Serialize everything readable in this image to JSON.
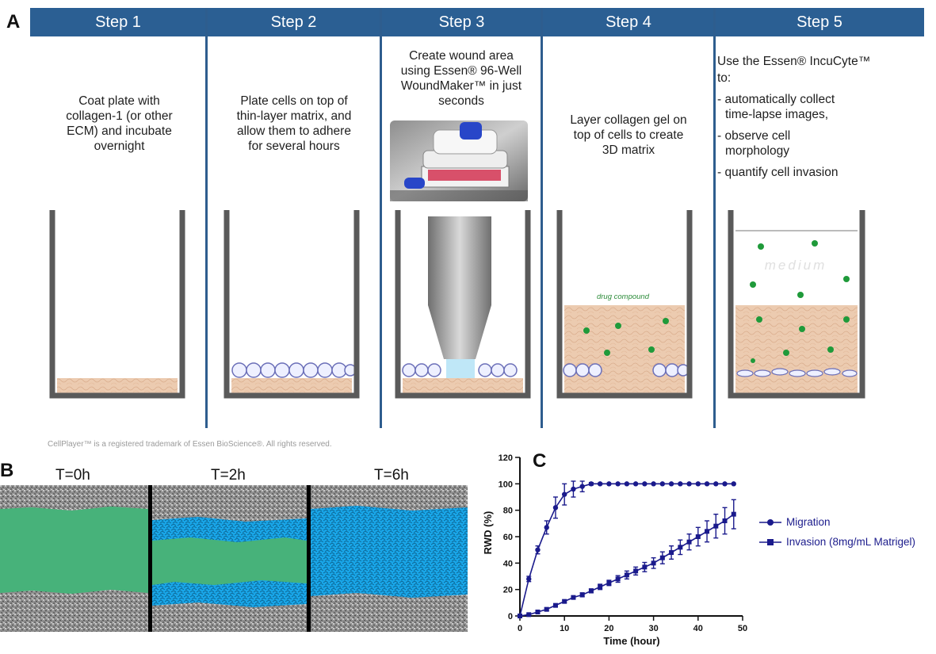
{
  "panel_labels": {
    "a": "A",
    "b": "B",
    "c": "C"
  },
  "steps": [
    {
      "title": "Step 1",
      "text": [
        "Coat plate with",
        "collagen-1 (or other",
        "ECM) and incubate",
        "overnight"
      ]
    },
    {
      "title": "Step 2",
      "text": [
        "Plate cells on top of",
        "thin-layer matrix, and",
        "allow them to adhere",
        "for several hours"
      ]
    },
    {
      "title": "Step 3",
      "text": [
        "Create wound area",
        "using Essen® 96-Well",
        "WoundMaker™ in just",
        "seconds"
      ]
    },
    {
      "title": "Step 4",
      "text": [
        "Layer collagen gel on",
        "top of cells to create",
        "3D matrix"
      ]
    },
    {
      "title": "Step 5",
      "text": [
        "Use the Essen® IncuCyte™",
        "to:",
        "- automatically collect",
        "time-lapse images,",
        "- observe cell",
        "morphology",
        "- quantify cell invasion"
      ]
    }
  ],
  "well_labels": {
    "drug": "drug compound",
    "medium": "medium"
  },
  "footnote": "CellPlayer™ is a registered trademark of Essen BioScience®.  All rights reserved.",
  "timepoints": [
    "T=0h",
    "T=2h",
    "T=6h"
  ],
  "colors": {
    "header": "#2b5f93",
    "matrix": "#eccbb0",
    "cell_green": "#1f9a3a",
    "wound_green": "#47b27a",
    "cell_blue": "#19a6e8",
    "series": "#1a1a8c"
  },
  "chart_data": {
    "type": "line",
    "xlabel": "Time (hour)",
    "ylabel": "RWD (%)",
    "xlim": [
      0,
      50
    ],
    "ylim": [
      0,
      120
    ],
    "xticks": [
      0,
      10,
      20,
      30,
      40,
      50
    ],
    "yticks": [
      0,
      20,
      40,
      60,
      80,
      100,
      120
    ],
    "legend_position": "right",
    "series": [
      {
        "name": "Migration",
        "marker": "circle",
        "x": [
          0,
          2,
          4,
          6,
          8,
          10,
          12,
          14,
          16,
          18,
          20,
          22,
          24,
          26,
          28,
          30,
          32,
          34,
          36,
          38,
          40,
          42,
          44,
          46,
          48
        ],
        "y": [
          0,
          28,
          50,
          67,
          82,
          92,
          96,
          98,
          100,
          100,
          100,
          100,
          100,
          100,
          100,
          100,
          100,
          100,
          100,
          100,
          100,
          100,
          100,
          100,
          100
        ],
        "err": [
          0,
          2,
          3,
          5,
          8,
          8,
          6,
          4,
          1,
          0.5,
          0,
          0,
          0,
          0,
          0,
          0,
          0,
          0,
          0,
          0,
          0,
          0,
          0,
          0,
          0
        ]
      },
      {
        "name": "Invasion (8mg/mL Matrigel)",
        "marker": "square",
        "x": [
          0,
          2,
          4,
          6,
          8,
          10,
          12,
          14,
          16,
          18,
          20,
          22,
          24,
          26,
          28,
          30,
          32,
          34,
          36,
          38,
          40,
          42,
          44,
          46,
          48
        ],
        "y": [
          0,
          1,
          3,
          5,
          8,
          11,
          14,
          16,
          19,
          22,
          25,
          28,
          31,
          34,
          37,
          40,
          44,
          48,
          52,
          56,
          60,
          64,
          68,
          72,
          77
        ],
        "err": [
          0,
          0.5,
          1,
          1,
          1,
          1,
          1,
          1.5,
          1.5,
          2,
          2,
          2.5,
          3,
          3,
          3.5,
          4,
          4.5,
          5,
          5.5,
          6,
          7,
          8,
          9,
          10,
          11
        ]
      }
    ]
  }
}
